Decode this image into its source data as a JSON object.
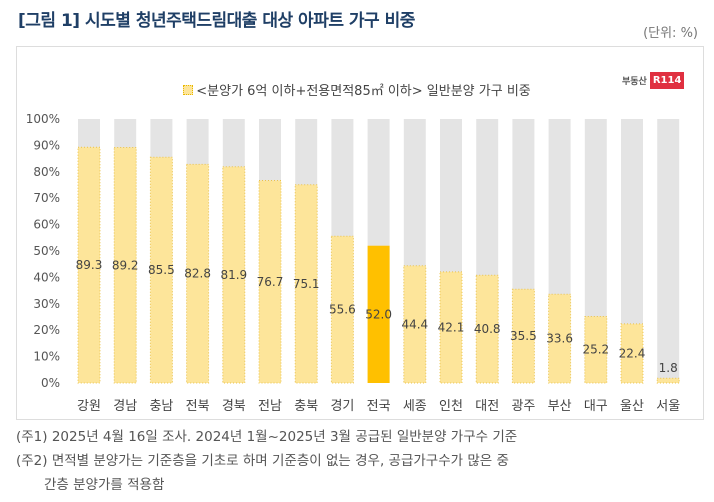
{
  "title": "[그림 1] 시도별 청년주택드림대출 대상 아파트 가구 비중",
  "unit": "(단위: %)",
  "logo": {
    "text": "부동산",
    "badge": "R114"
  },
  "notes": [
    "(주1) 2025년 4월 16일 조사. 2024년 1월~2025년 3월 공급된 일반분양 가구수 기준",
    "(주2) 면적별 분양가는 기준층을 기초로 하며 기준층이 없는 경우, 공급가구수가 많은 중",
    "간층 분양가를 적용함"
  ],
  "chart_data": {
    "type": "bar",
    "title": "<분양가 6억 이하+전용면적85㎡ 이하> 일반분양 가구 비중",
    "legend": [
      "<분양가 6억 이하+전용면적85㎡ 이하> 일반분양 가구 비중"
    ],
    "categories": [
      "강원",
      "경남",
      "충남",
      "전북",
      "경북",
      "전남",
      "충북",
      "경기",
      "전국",
      "세종",
      "인천",
      "대전",
      "광주",
      "부산",
      "대구",
      "울산",
      "서울"
    ],
    "values": [
      89.3,
      89.2,
      85.5,
      82.8,
      81.9,
      76.7,
      75.1,
      55.6,
      52.0,
      44.4,
      42.1,
      40.8,
      35.5,
      33.6,
      25.2,
      22.4,
      1.8
    ],
    "highlight": "전국",
    "ylim": [
      0,
      100
    ],
    "yticks": [
      "0%",
      "10%",
      "20%",
      "30%",
      "40%",
      "50%",
      "60%",
      "70%",
      "80%",
      "90%",
      "100%"
    ],
    "colors": {
      "bar": "#fde59a",
      "highlight": "#ffc000",
      "background": "#e4e4e4"
    }
  }
}
